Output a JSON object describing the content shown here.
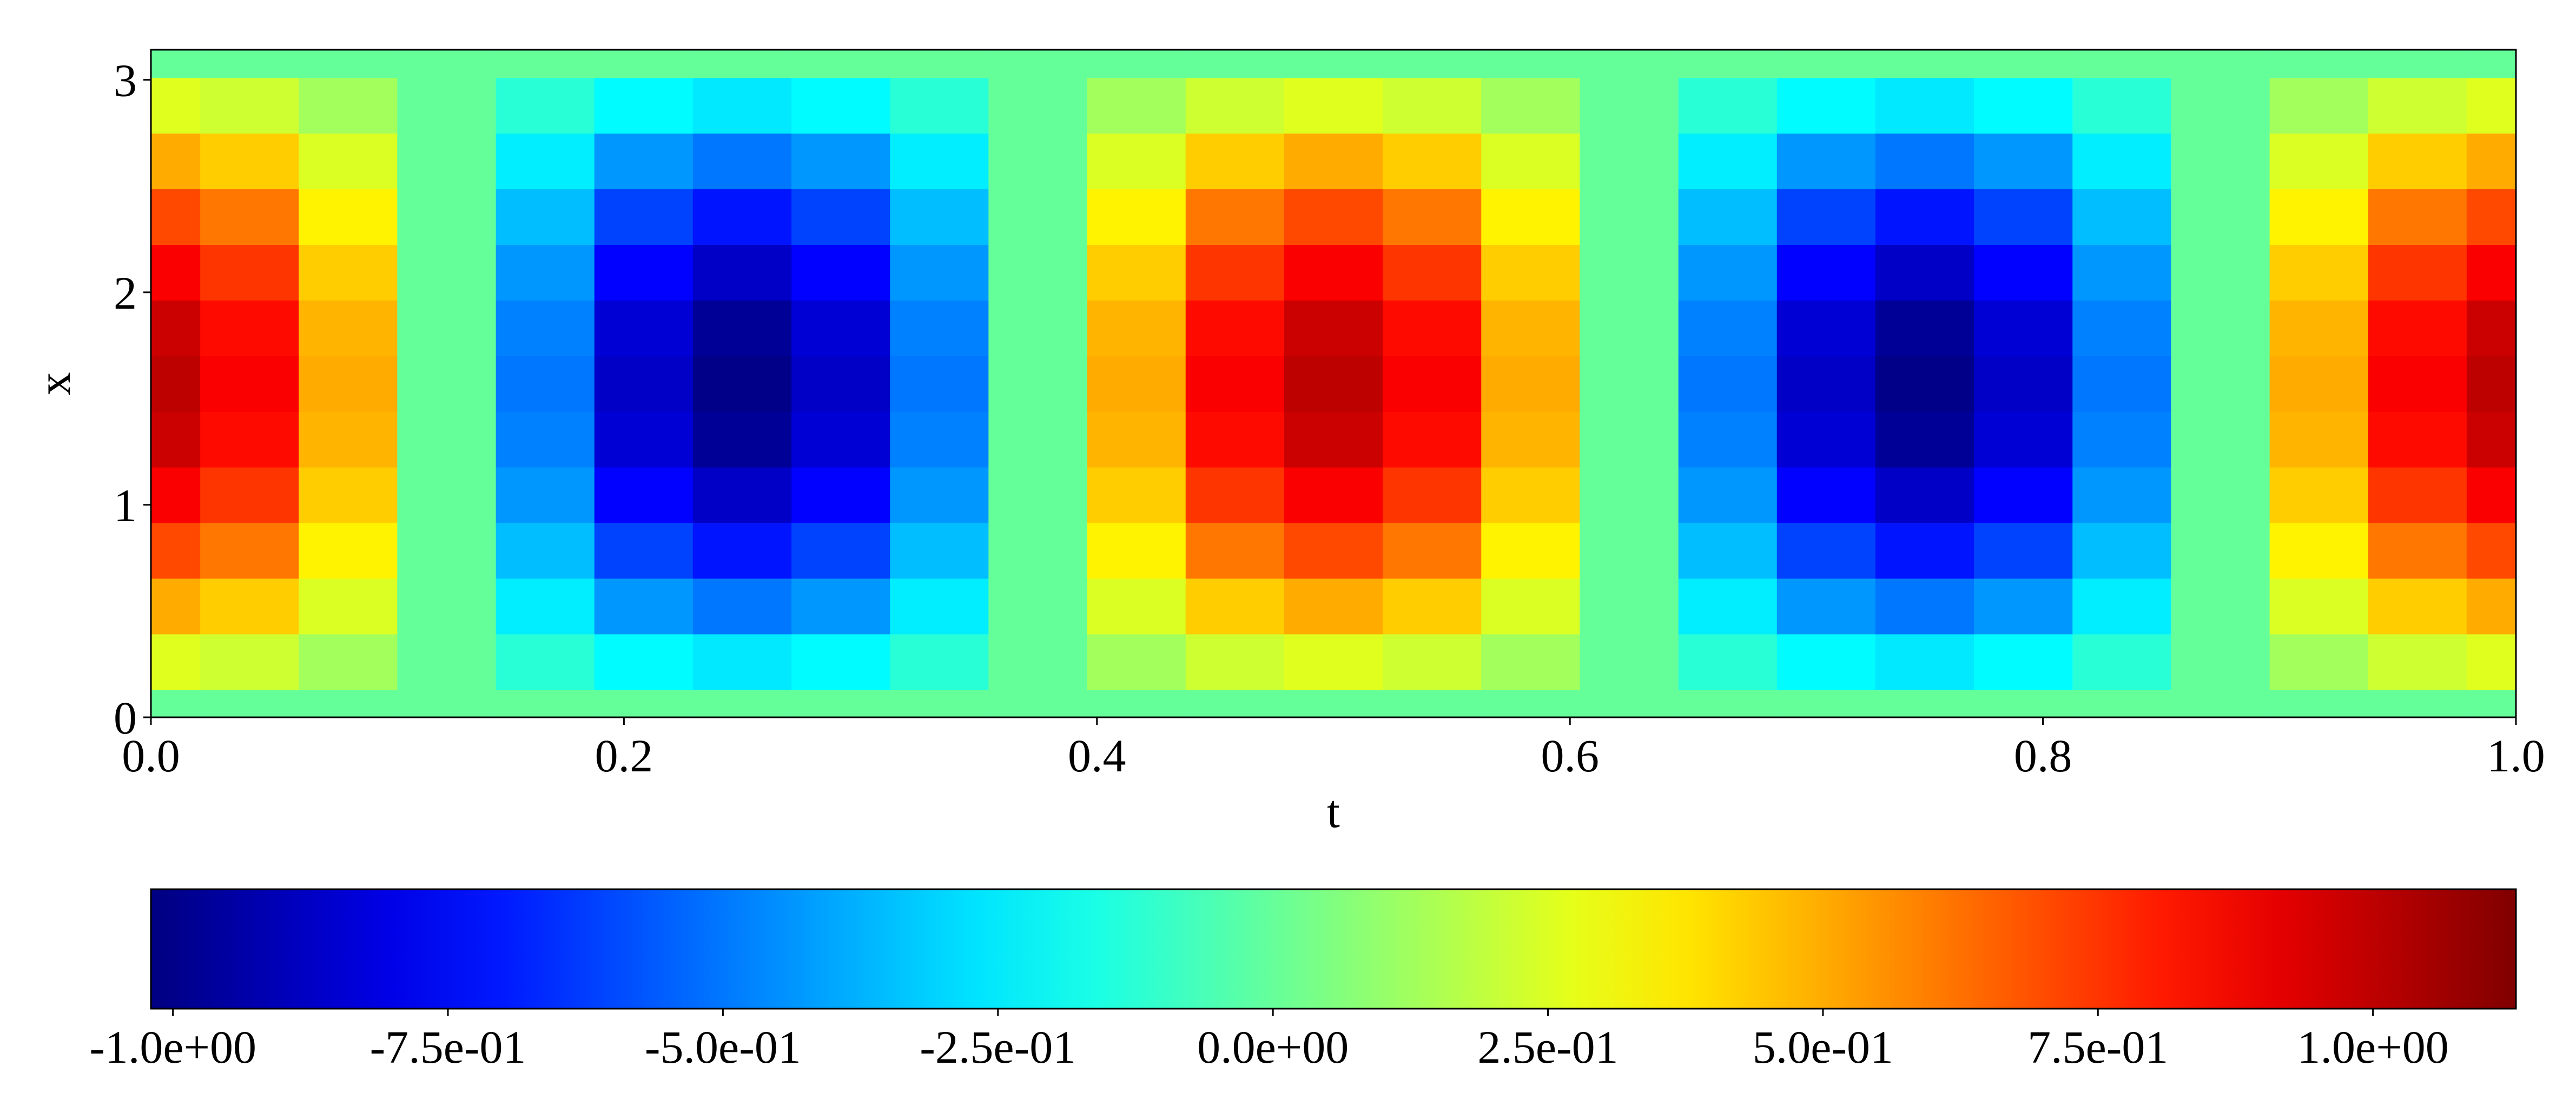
{
  "chart_data": {
    "type": "heatmap",
    "colormap": "jet",
    "xlabel": "t",
    "ylabel": "x",
    "xlim": [
      0,
      1
    ],
    "ylim": [
      0,
      3.1416
    ],
    "xticks": [
      {
        "value": 0,
        "label": "0.0"
      },
      {
        "value": 0.2,
        "label": "0.2"
      },
      {
        "value": 0.4,
        "label": "0.4"
      },
      {
        "value": 0.6,
        "label": "0.6"
      },
      {
        "value": 0.8,
        "label": "0.8"
      },
      {
        "value": 1,
        "label": "1.0"
      }
    ],
    "yticks": [
      0,
      1,
      2,
      3
    ],
    "t": [
      0,
      0.0417,
      0.0833,
      0.125,
      0.1667,
      0.2083,
      0.25,
      0.2917,
      0.3333,
      0.375,
      0.4167,
      0.4583,
      0.5,
      0.5417,
      0.5833,
      0.625,
      0.6667,
      0.7083,
      0.75,
      0.7917,
      0.8333,
      0.875,
      0.9167,
      0.9583,
      1
    ],
    "x": [
      0,
      0.2618,
      0.5236,
      0.7854,
      1.0472,
      1.309,
      1.5708,
      1.8326,
      2.0944,
      2.3562,
      2.618,
      2.8798,
      3.1416
    ],
    "z": [
      [
        0,
        0,
        0,
        0,
        0,
        0,
        0,
        0,
        0,
        0,
        0,
        0,
        0,
        0,
        0,
        0,
        0,
        0,
        0,
        0,
        0,
        0,
        0,
        0,
        0
      ],
      [
        0.26,
        0.22,
        0.13,
        0,
        -0.13,
        -0.22,
        -0.26,
        -0.22,
        -0.13,
        0,
        0.13,
        0.22,
        0.26,
        0.22,
        0.13,
        0,
        -0.13,
        -0.22,
        -0.26,
        -0.22,
        -0.13,
        0,
        0.13,
        0.22,
        0.26
      ],
      [
        0.5,
        0.43,
        0.25,
        0,
        -0.25,
        -0.43,
        -0.5,
        -0.43,
        -0.25,
        0,
        0.25,
        0.43,
        0.5,
        0.43,
        0.25,
        0,
        -0.25,
        -0.43,
        -0.5,
        -0.43,
        -0.25,
        0,
        0.25,
        0.43,
        0.5
      ],
      [
        0.71,
        0.61,
        0.35,
        0,
        -0.35,
        -0.61,
        -0.71,
        -0.61,
        -0.35,
        0,
        0.35,
        0.61,
        0.71,
        0.61,
        0.35,
        0,
        -0.35,
        -0.61,
        -0.71,
        -0.61,
        -0.35,
        0,
        0.35,
        0.61,
        0.71
      ],
      [
        0.87,
        0.75,
        0.43,
        0,
        -0.43,
        -0.75,
        -0.87,
        -0.75,
        -0.43,
        0,
        0.43,
        0.75,
        0.87,
        0.75,
        0.43,
        0,
        -0.43,
        -0.75,
        -0.87,
        -0.75,
        -0.43,
        0,
        0.43,
        0.75,
        0.87
      ],
      [
        0.97,
        0.84,
        0.48,
        0,
        -0.48,
        -0.84,
        -0.97,
        -0.84,
        -0.48,
        0,
        0.48,
        0.84,
        0.97,
        0.84,
        0.48,
        0,
        -0.48,
        -0.84,
        -0.97,
        -0.84,
        -0.48,
        0,
        0.48,
        0.84,
        0.97
      ],
      [
        1,
        0.87,
        0.5,
        0,
        -0.5,
        -0.87,
        -1,
        -0.87,
        -0.5,
        0,
        0.5,
        0.87,
        1,
        0.87,
        0.5,
        0,
        -0.5,
        -0.87,
        -1,
        -0.87,
        -0.5,
        0,
        0.5,
        0.87,
        1
      ],
      [
        0.97,
        0.84,
        0.48,
        0,
        -0.48,
        -0.84,
        -0.97,
        -0.84,
        -0.48,
        0,
        0.48,
        0.84,
        0.97,
        0.84,
        0.48,
        0,
        -0.48,
        -0.84,
        -0.97,
        -0.84,
        -0.48,
        0,
        0.48,
        0.84,
        0.97
      ],
      [
        0.87,
        0.75,
        0.43,
        0,
        -0.43,
        -0.75,
        -0.87,
        -0.75,
        -0.43,
        0,
        0.43,
        0.75,
        0.87,
        0.75,
        0.43,
        0,
        -0.43,
        -0.75,
        -0.87,
        -0.75,
        -0.43,
        0,
        0.43,
        0.75,
        0.87
      ],
      [
        0.71,
        0.61,
        0.35,
        0,
        -0.35,
        -0.61,
        -0.71,
        -0.61,
        -0.35,
        0,
        0.35,
        0.61,
        0.71,
        0.61,
        0.35,
        0,
        -0.35,
        -0.61,
        -0.71,
        -0.61,
        -0.35,
        0,
        0.35,
        0.61,
        0.71
      ],
      [
        0.5,
        0.43,
        0.25,
        0,
        -0.25,
        -0.43,
        -0.5,
        -0.43,
        -0.25,
        0,
        0.25,
        0.43,
        0.5,
        0.43,
        0.25,
        0,
        -0.25,
        -0.43,
        -0.5,
        -0.43,
        -0.25,
        0,
        0.25,
        0.43,
        0.5
      ],
      [
        0.26,
        0.22,
        0.13,
        0,
        -0.13,
        -0.22,
        -0.26,
        -0.22,
        -0.13,
        0,
        0.13,
        0.22,
        0.26,
        0.22,
        0.13,
        0,
        -0.13,
        -0.22,
        -0.26,
        -0.22,
        -0.13,
        0,
        0.13,
        0.22,
        0.26
      ],
      [
        0,
        0,
        0,
        0,
        0,
        0,
        0,
        0,
        0,
        0,
        0,
        0,
        0,
        0,
        0,
        0,
        0,
        0,
        0,
        0,
        0,
        0,
        0,
        0,
        0
      ]
    ],
    "clim": [
      -1.02,
      1.13
    ],
    "cticks": [
      {
        "value": -1,
        "label": "-1.0e+00"
      },
      {
        "value": -0.75,
        "label": "-7.5e-01"
      },
      {
        "value": -0.5,
        "label": "-5.0e-01"
      },
      {
        "value": -0.25,
        "label": "-2.5e-01"
      },
      {
        "value": 0,
        "label": "0.0e+00"
      },
      {
        "value": 0.25,
        "label": "2.5e-01"
      },
      {
        "value": 0.5,
        "label": "5.0e-01"
      },
      {
        "value": 0.75,
        "label": "7.5e-01"
      },
      {
        "value": 1,
        "label": "1.0e+00"
      }
    ]
  }
}
